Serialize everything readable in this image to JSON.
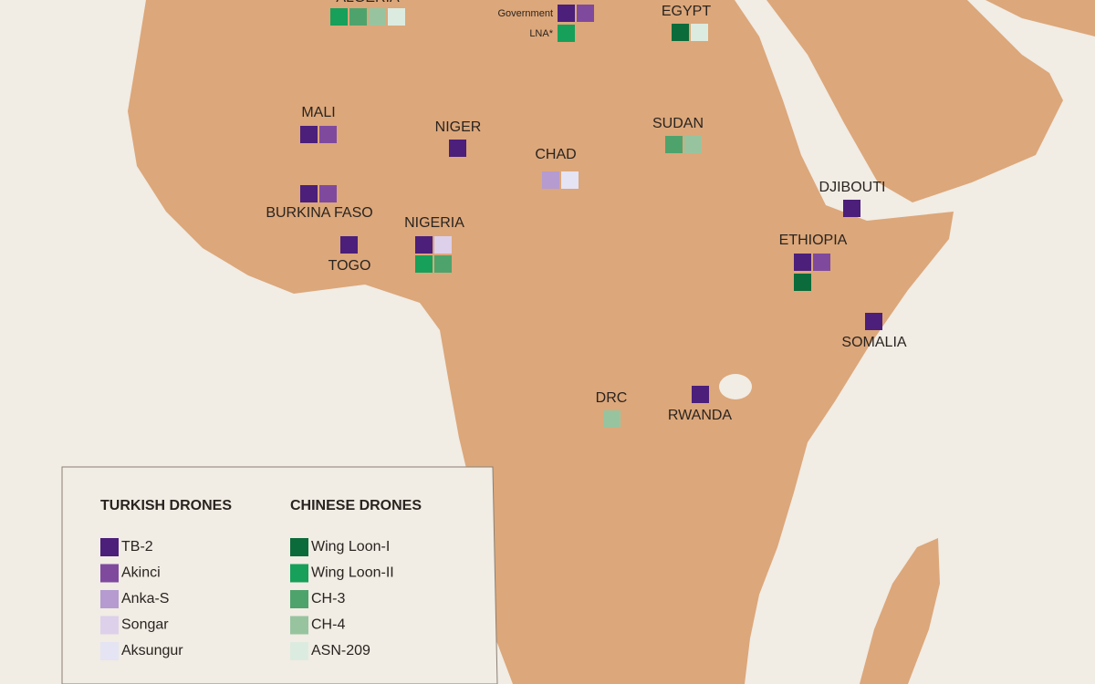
{
  "countries": [
    {
      "label": "ALGERIA",
      "drones": [
        "Wing Loon-II",
        "CH-3",
        "CH-4",
        "ASN-209"
      ]
    },
    {
      "label": "EGYPT",
      "drones": [
        "Wing Loon-I",
        "ASN-209"
      ]
    },
    {
      "label": "MALI",
      "drones": [
        "TB-2",
        "Akinci"
      ]
    },
    {
      "label": "NIGER",
      "drones": [
        "TB-2"
      ]
    },
    {
      "label": "SUDAN",
      "drones": [
        "CH-3",
        "CH-4"
      ]
    },
    {
      "label": "CHAD",
      "drones": [
        "Anka-S",
        "Aksungur"
      ]
    },
    {
      "label": "DJIBOUTI",
      "drones": [
        "TB-2"
      ]
    },
    {
      "label": "BURKINA FASO",
      "drones": [
        "TB-2",
        "Akinci"
      ]
    },
    {
      "label": "NIGERIA",
      "drones": [
        "TB-2",
        "Songar",
        "Wing Loon-II",
        "CH-3"
      ]
    },
    {
      "label": "TOGO",
      "drones": [
        "TB-2"
      ]
    },
    {
      "label": "ETHIOPIA",
      "drones": [
        "TB-2",
        "Akinci",
        "Wing Loon-I"
      ]
    },
    {
      "label": "SOMALIA",
      "drones": [
        "TB-2"
      ]
    },
    {
      "label": "DRC",
      "drones": [
        "CH-4"
      ]
    },
    {
      "label": "RWANDA",
      "drones": [
        "TB-2"
      ]
    }
  ],
  "libya_factions": [
    {
      "label": "Government",
      "drones": [
        "TB-2",
        "Akinci"
      ]
    },
    {
      "label": "LNA*",
      "drones": [
        "Wing Loon-II"
      ]
    }
  ],
  "legend": {
    "groups": [
      {
        "title": "TURKISH DRONES",
        "items": [
          {
            "name": "TB-2",
            "color": "#4b1f7a"
          },
          {
            "name": "Akinci",
            "color": "#7f4a9e"
          },
          {
            "name": "Anka-S",
            "color": "#b59bd0"
          },
          {
            "name": "Songar",
            "color": "#ddd0ea"
          },
          {
            "name": "Aksungur",
            "color": "#e4e4f4"
          }
        ]
      },
      {
        "title": "CHINESE DRONES",
        "items": [
          {
            "name": "Wing Loon-I",
            "color": "#0b6b3a"
          },
          {
            "name": "Wing Loon-II",
            "color": "#16a05a"
          },
          {
            "name": "CH-3",
            "color": "#4ea36c"
          },
          {
            "name": "CH-4",
            "color": "#97c49f"
          },
          {
            "name": "ASN-209",
            "color": "#dcebe0"
          }
        ]
      }
    ]
  }
}
